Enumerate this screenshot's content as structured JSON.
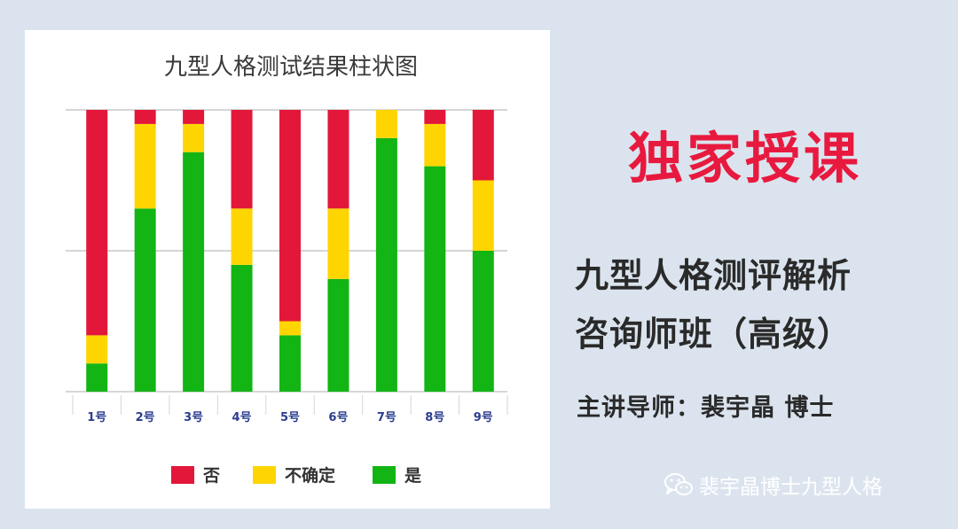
{
  "chart_data": {
    "type": "bar",
    "stacked": true,
    "title": "九型人格测试结果柱状图",
    "categories": [
      "1号",
      "2号",
      "3号",
      "4号",
      "5号",
      "6号",
      "7号",
      "8号",
      "9号"
    ],
    "series": [
      {
        "name": "是",
        "color": "#12b514",
        "values": [
          2,
          13,
          17,
          9,
          4,
          8,
          18,
          16,
          10
        ]
      },
      {
        "name": "不确定",
        "color": "#fed500",
        "values": [
          2,
          6,
          2,
          4,
          1,
          5,
          2,
          3,
          5
        ]
      },
      {
        "name": "否",
        "color": "#e3173a",
        "values": [
          16,
          1,
          1,
          7,
          15,
          7,
          0,
          1,
          5
        ]
      }
    ],
    "ylim": [
      0,
      20
    ],
    "grid": true,
    "legend_position": "bottom"
  },
  "promo": {
    "headline": "独家授课",
    "course_line1": "九型人格测评解析",
    "course_line2": "咨询师班（高级）",
    "lecturer": "主讲导师：裴宇晶 博士",
    "watermark": "裴宇晶博士九型人格",
    "watermark_icon": "wechat-icon"
  }
}
